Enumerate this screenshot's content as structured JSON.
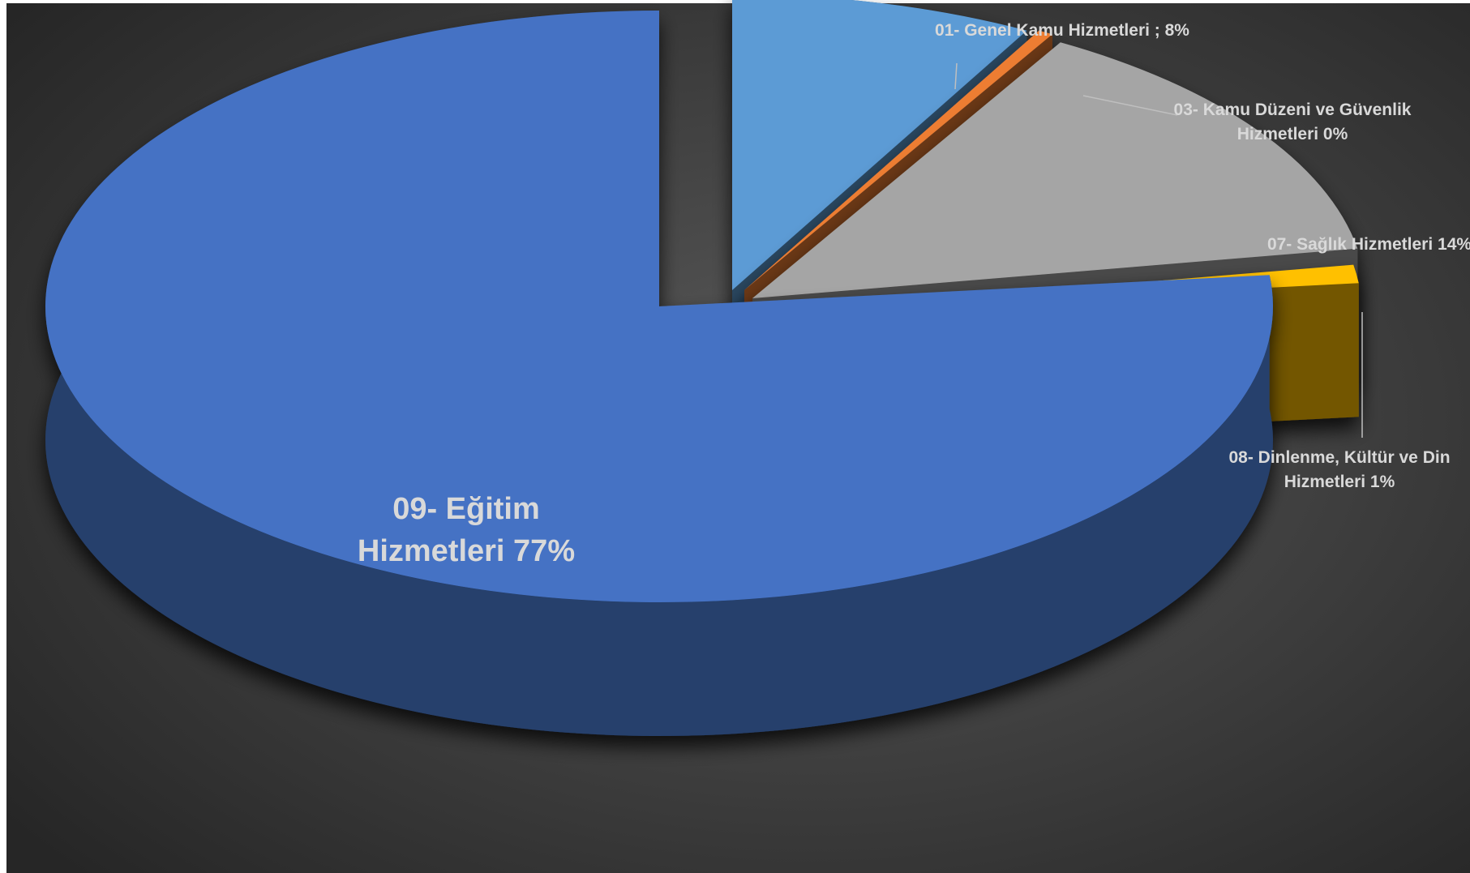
{
  "chart_data": {
    "type": "pie",
    "variant": "3d-exploded",
    "slices": [
      {
        "label_lines": [
          "01- Genel Kamu Hizmetleri ; 8%"
        ],
        "value": 8,
        "color": "#5b9bd5"
      },
      {
        "label_lines": [
          "03- Kamu Düzeni ve Güvenlik",
          "Hizmetleri  0%"
        ],
        "value": 0.4,
        "color": "#ed7d31"
      },
      {
        "label_lines": [
          "07- Sağlık Hizmetleri  14%"
        ],
        "value": 14,
        "color": "#a5a5a5"
      },
      {
        "label_lines": [
          "08- Dinlenme, Kültür ve Din",
          "Hizmetleri  1%"
        ],
        "value": 1,
        "color": "#ffc000"
      },
      {
        "label_lines": [
          "09- Eğitim",
          "Hizmetleri  77%"
        ],
        "value": 77,
        "color": "#4472c4"
      }
    ]
  }
}
